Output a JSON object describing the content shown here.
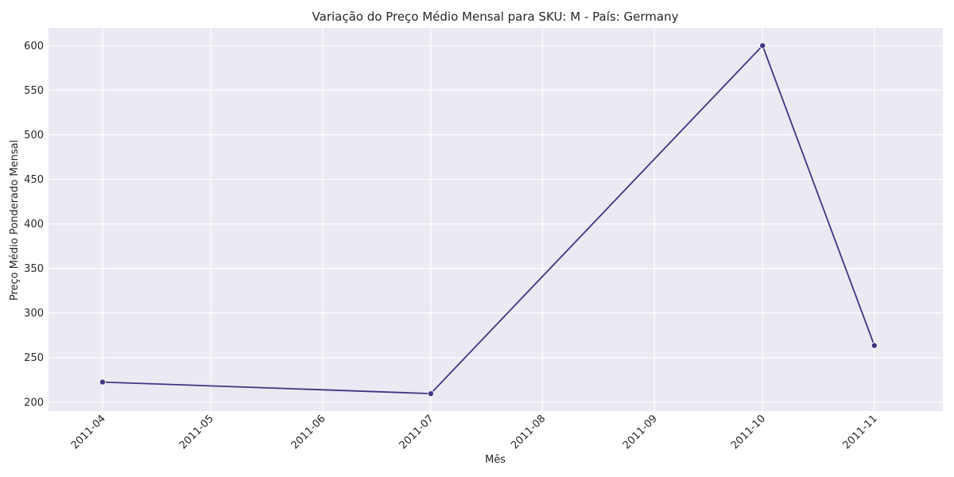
{
  "chart_data": {
    "type": "line",
    "title": "Variação do Preço Médio Mensal para SKU: M - País: Germany",
    "xlabel": "Mês",
    "ylabel": "Preço Médio Ponderado Mensal",
    "x_ticks": [
      "2011-04",
      "2011-05",
      "2011-06",
      "2011-07",
      "2011-08",
      "2011-09",
      "2011-10",
      "2011-11"
    ],
    "y_ticks": [
      200,
      250,
      300,
      350,
      400,
      450,
      500,
      550,
      600
    ],
    "xlim": [
      "2011-03-17",
      "2011-11-20"
    ],
    "ylim": [
      190,
      620
    ],
    "grid": true,
    "series": [
      {
        "color": "#3f3583",
        "x": [
          "2011-04-01",
          "2011-07-01",
          "2011-10-01",
          "2011-11-01"
        ],
        "values": [
          222.5,
          209.5,
          600.0,
          263.5
        ]
      }
    ]
  }
}
